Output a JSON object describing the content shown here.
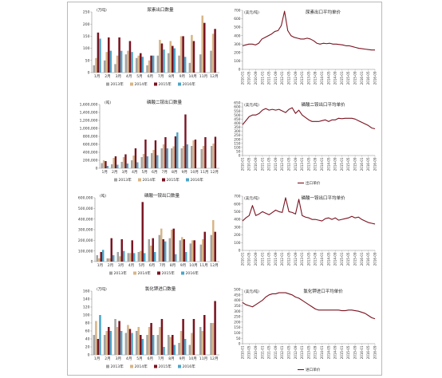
{
  "colors": {
    "s2013": "#a3a3a3",
    "s2014": "#d8b587",
    "s2015": "#7a1320",
    "s2016": "#4ba6c8",
    "line": "#7a1320",
    "axis": "#555555"
  },
  "months": [
    "1月",
    "2月",
    "3月",
    "4月",
    "5月",
    "6月",
    "7月",
    "8月",
    "9月",
    "10月",
    "11月",
    "12月"
  ],
  "legend_years": [
    "2013年",
    "2014年",
    "2015年",
    "2016年"
  ],
  "bar_charts": [
    {
      "id": "urea-export-volume",
      "type": "bar",
      "title": "尿素出口数量",
      "unit": "(万吨)",
      "ylim": [
        0,
        250
      ],
      "yticks": [
        "0",
        "50",
        "100",
        "150",
        "200",
        "250"
      ],
      "series": [
        {
          "name": "2013年",
          "values": [
            30,
            50,
            35,
            75,
            60,
            30,
            70,
            80,
            70,
            40,
            75,
            90
          ]
        },
        {
          "name": "2014年",
          "values": [
            60,
            85,
            70,
            90,
            70,
            50,
            135,
            130,
            150,
            155,
            235,
            160
          ]
        },
        {
          "name": "2015年",
          "values": [
            165,
            145,
            145,
            130,
            80,
            70,
            120,
            110,
            150,
            130,
            205,
            180
          ]
        },
        {
          "name": "2016年",
          "values": [
            140,
            90,
            90,
            85,
            65,
            70,
            95,
            100,
            65,
            null,
            null,
            null
          ]
        }
      ]
    },
    {
      "id": "dap-export-volume",
      "type": "bar",
      "title": "磷酸二铵出口数量",
      "unit": "(吨)",
      "ylim": [
        0,
        1600000
      ],
      "yticks": [
        "0",
        "200,000",
        "400,000",
        "600,000",
        "800,000",
        "1,000,000",
        "1,200,000",
        "1,400,000",
        "1,600,000"
      ],
      "series": [
        {
          "name": "2013年",
          "values": [
            130000,
            100000,
            160000,
            200000,
            280000,
            380000,
            500000,
            500000,
            500000,
            560000,
            480000,
            560000
          ]
        },
        {
          "name": "2014年",
          "values": [
            200000,
            260000,
            280000,
            320000,
            360000,
            460000,
            600000,
            550000,
            560000,
            700000,
            560000,
            620000
          ]
        },
        {
          "name": "2015年",
          "values": [
            180000,
            300000,
            350000,
            500000,
            720000,
            700000,
            780000,
            800000,
            1350000,
            720000,
            780000,
            790000
          ]
        },
        {
          "name": "2016年",
          "values": [
            60000,
            90000,
            120000,
            150000,
            300000,
            330000,
            500000,
            900000,
            600000,
            null,
            null,
            null
          ]
        }
      ]
    },
    {
      "id": "map-export-volume",
      "type": "bar",
      "title": "磷酸一铵出口数量",
      "unit": "(吨)",
      "ylim": [
        0,
        600000
      ],
      "yticks": [
        "0",
        "100,000",
        "200,000",
        "300,000",
        "400,000",
        "500,000",
        "600,000"
      ],
      "series": [
        {
          "name": "2013年",
          "values": [
            60000,
            30000,
            90000,
            80000,
            90000,
            210000,
            250000,
            220000,
            200000,
            170000,
            160000,
            250000
          ]
        },
        {
          "name": "2014年",
          "values": [
            30000,
            30000,
            50000,
            80000,
            100000,
            150000,
            310000,
            300000,
            230000,
            200000,
            210000,
            390000
          ]
        },
        {
          "name": "2015年",
          "values": [
            90000,
            220000,
            210000,
            200000,
            560000,
            220000,
            210000,
            310000,
            210000,
            200000,
            280000,
            280000
          ]
        },
        {
          "name": "2016年",
          "values": [
            110000,
            60000,
            100000,
            80000,
            80000,
            90000,
            190000,
            70000,
            90000,
            null,
            null,
            null
          ]
        }
      ]
    },
    {
      "id": "kcl-import-volume",
      "type": "bar",
      "title": "氯化钾进口数量",
      "unit": "(万吨)",
      "ylim": [
        0,
        160
      ],
      "yticks": [
        "0",
        "20",
        "40",
        "60",
        "80",
        "100",
        "120",
        "140",
        "160"
      ],
      "series": [
        {
          "name": "2013年",
          "values": [
            50,
            50,
            90,
            55,
            60,
            50,
            50,
            50,
            30,
            25,
            70,
            80
          ]
        },
        {
          "name": "2014年",
          "values": [
            85,
            60,
            70,
            75,
            70,
            70,
            70,
            45,
            60,
            55,
            60,
            80
          ]
        },
        {
          "name": "2015年",
          "values": [
            40,
            70,
            85,
            65,
            50,
            80,
            90,
            50,
            90,
            90,
            100,
            135
          ]
        },
        {
          "name": "2016年",
          "values": [
            100,
            60,
            60,
            55,
            40,
            50,
            20,
            25,
            40,
            null,
            null,
            null
          ]
        }
      ]
    }
  ],
  "line_charts": [
    {
      "id": "urea-export-price",
      "type": "line",
      "title": "尿素出口平均单价",
      "unit": "(美元/吨)",
      "legend": "",
      "ylim": [
        0,
        700
      ],
      "yticks": [
        "0",
        "100",
        "200",
        "300",
        "400",
        "500",
        "600",
        "700"
      ],
      "xticks": [
        "2010-01",
        "2010-05",
        "2010-09",
        "2011-01",
        "2011-05",
        "2011-09",
        "2012-01",
        "2012-05",
        "2012-09",
        "2013-01",
        "2013-05",
        "2013-09",
        "2014-01",
        "2014-05",
        "2014-09",
        "2015-01",
        "2015-05",
        "2015-09",
        "2016-01",
        "2016-05",
        "2016-09"
      ],
      "values": [
        280,
        290,
        300,
        300,
        290,
        310,
        360,
        380,
        400,
        420,
        450,
        460,
        520,
        690,
        460,
        400,
        380,
        370,
        360,
        360,
        370,
        360,
        340,
        310,
        300,
        310,
        305,
        310,
        300,
        300,
        295,
        290,
        280,
        280,
        270,
        260,
        250,
        245,
        240,
        235,
        230,
        230
      ]
    },
    {
      "id": "dap-export-price",
      "type": "line",
      "title": "磷酸二铵出口平均单价",
      "unit": "(美元/吨)",
      "legend": "出口单价",
      "ylim": [
        0,
        650
      ],
      "yticks": [
        "0",
        "50",
        "100",
        "150",
        "200",
        "250",
        "300",
        "350",
        "400",
        "450",
        "500",
        "550",
        "600",
        "650"
      ],
      "xticks": [
        "2010-01",
        "2010-05",
        "2010-09",
        "2011-01",
        "2011-05",
        "2011-09",
        "2012-01",
        "2012-05",
        "2012-09",
        "2013-01",
        "2013-05",
        "2013-09",
        "2014-01",
        "2014-05",
        "2014-09",
        "2015-01",
        "2015-05",
        "2015-09",
        "2016-01",
        "2016-05",
        "2016-09"
      ],
      "values": [
        380,
        430,
        480,
        500,
        500,
        520,
        560,
        580,
        560,
        570,
        560,
        570,
        550,
        530,
        570,
        590,
        520,
        560,
        500,
        470,
        440,
        420,
        420,
        420,
        430,
        440,
        420,
        440,
        440,
        460,
        455,
        460,
        460,
        460,
        450,
        430,
        410,
        390,
        370,
        340,
        330
      ]
    },
    {
      "id": "map-export-price",
      "type": "line",
      "title": "磷酸一铵出口平均单价",
      "unit": "(美元/吨)",
      "legend": "",
      "ylim": [
        0,
        700
      ],
      "yticks": [
        "0",
        "100",
        "200",
        "300",
        "400",
        "500",
        "600",
        "700"
      ],
      "xticks": [
        "2010-01",
        "2010-05",
        "2010-09",
        "2011-01",
        "2011-05",
        "2011-09",
        "2012-01",
        "2012-05",
        "2012-09",
        "2013-01",
        "2013-05",
        "2013-09",
        "2014-01",
        "2014-05",
        "2014-09",
        "2015-01",
        "2015-05",
        "2015-09",
        "2016-01",
        "2016-05",
        "2016-09"
      ],
      "values": [
        380,
        420,
        450,
        580,
        450,
        470,
        500,
        480,
        460,
        490,
        520,
        500,
        490,
        680,
        500,
        490,
        470,
        660,
        450,
        430,
        420,
        400,
        400,
        390,
        380,
        410,
        420,
        400,
        420,
        390,
        400,
        410,
        420,
        440,
        420,
        430,
        400,
        380,
        360,
        350,
        340
      ]
    },
    {
      "id": "kcl-import-price",
      "type": "line",
      "title": "氯化钾进口平均单价",
      "unit": "(美元/吨)",
      "legend": "进口单价",
      "ylim": [
        0,
        500
      ],
      "yticks": [
        "0",
        "50",
        "100",
        "150",
        "200",
        "250",
        "300",
        "350",
        "400",
        "450",
        "500"
      ],
      "xticks": [
        "2010-01",
        "2010-05",
        "2010-09",
        "2011-01",
        "2011-05",
        "2011-09",
        "2012-01",
        "2012-05",
        "2012-09",
        "2013-01",
        "2013-05",
        "2013-09",
        "2014-01",
        "2014-05",
        "2014-09",
        "2015-01",
        "2015-05",
        "2015-09",
        "2016-01",
        "2016-05",
        "2016-09"
      ],
      "values": [
        380,
        360,
        350,
        340,
        360,
        380,
        400,
        430,
        450,
        460,
        460,
        470,
        470,
        470,
        460,
        450,
        430,
        420,
        400,
        380,
        360,
        340,
        320,
        310,
        310,
        310,
        310,
        310,
        310,
        310,
        305,
        305,
        310,
        310,
        305,
        300,
        290,
        280,
        260,
        240,
        230
      ]
    }
  ]
}
